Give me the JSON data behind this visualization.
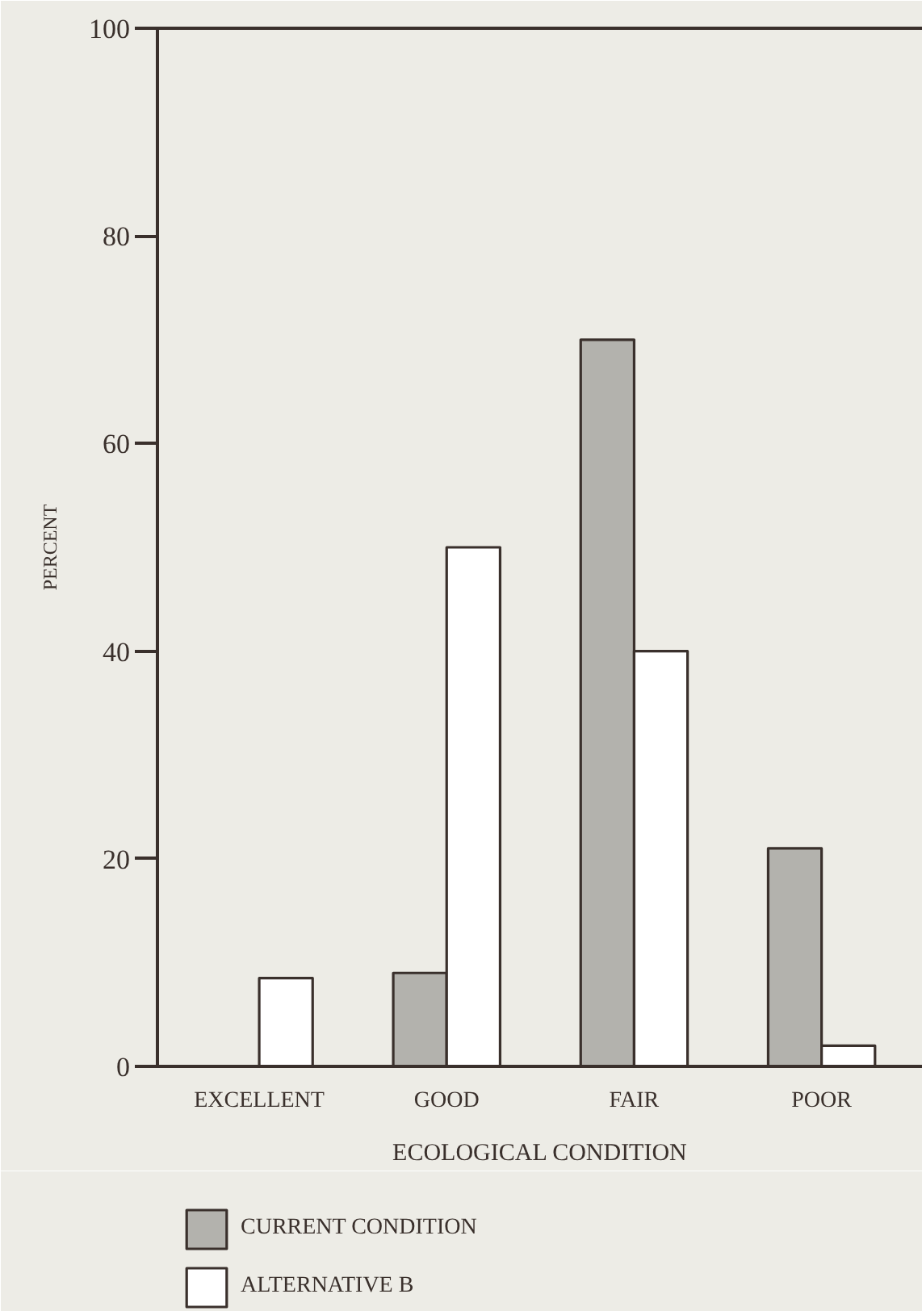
{
  "chart_data": {
    "type": "bar",
    "xlabel": "ECOLOGICAL CONDITION",
    "ylabel": "PERCENT",
    "categories": [
      "EXCELLENT",
      "GOOD",
      "FAIR",
      "POOR"
    ],
    "series": [
      {
        "name": "CURRENT CONDITION",
        "color": "#b3b2ad",
        "values": [
          null,
          9,
          70,
          21
        ]
      },
      {
        "name": "ALTERNATIVE B",
        "color": "#ffffff",
        "values": [
          8.5,
          50,
          40,
          2
        ]
      }
    ],
    "ylim": [
      0,
      100
    ],
    "yticks": [
      0,
      20,
      40,
      60,
      80,
      100
    ],
    "legend": "bottom left"
  }
}
